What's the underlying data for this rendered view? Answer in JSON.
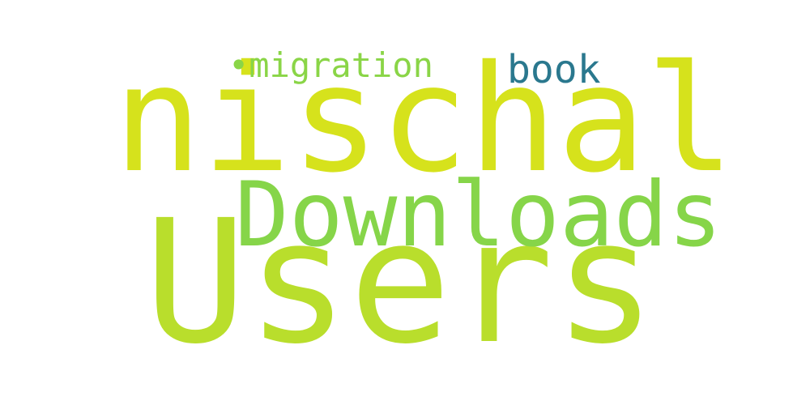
{
  "words": [
    {
      "text": "nischal",
      "color": "#d6e21c"
    },
    {
      "text": "Users",
      "color": "#b9de2c"
    },
    {
      "text": "Downloads",
      "color": "#86d549"
    },
    {
      "text": "•migration",
      "color": "#8ad547"
    },
    {
      "text": "book",
      "color": "#2a788e"
    }
  ]
}
